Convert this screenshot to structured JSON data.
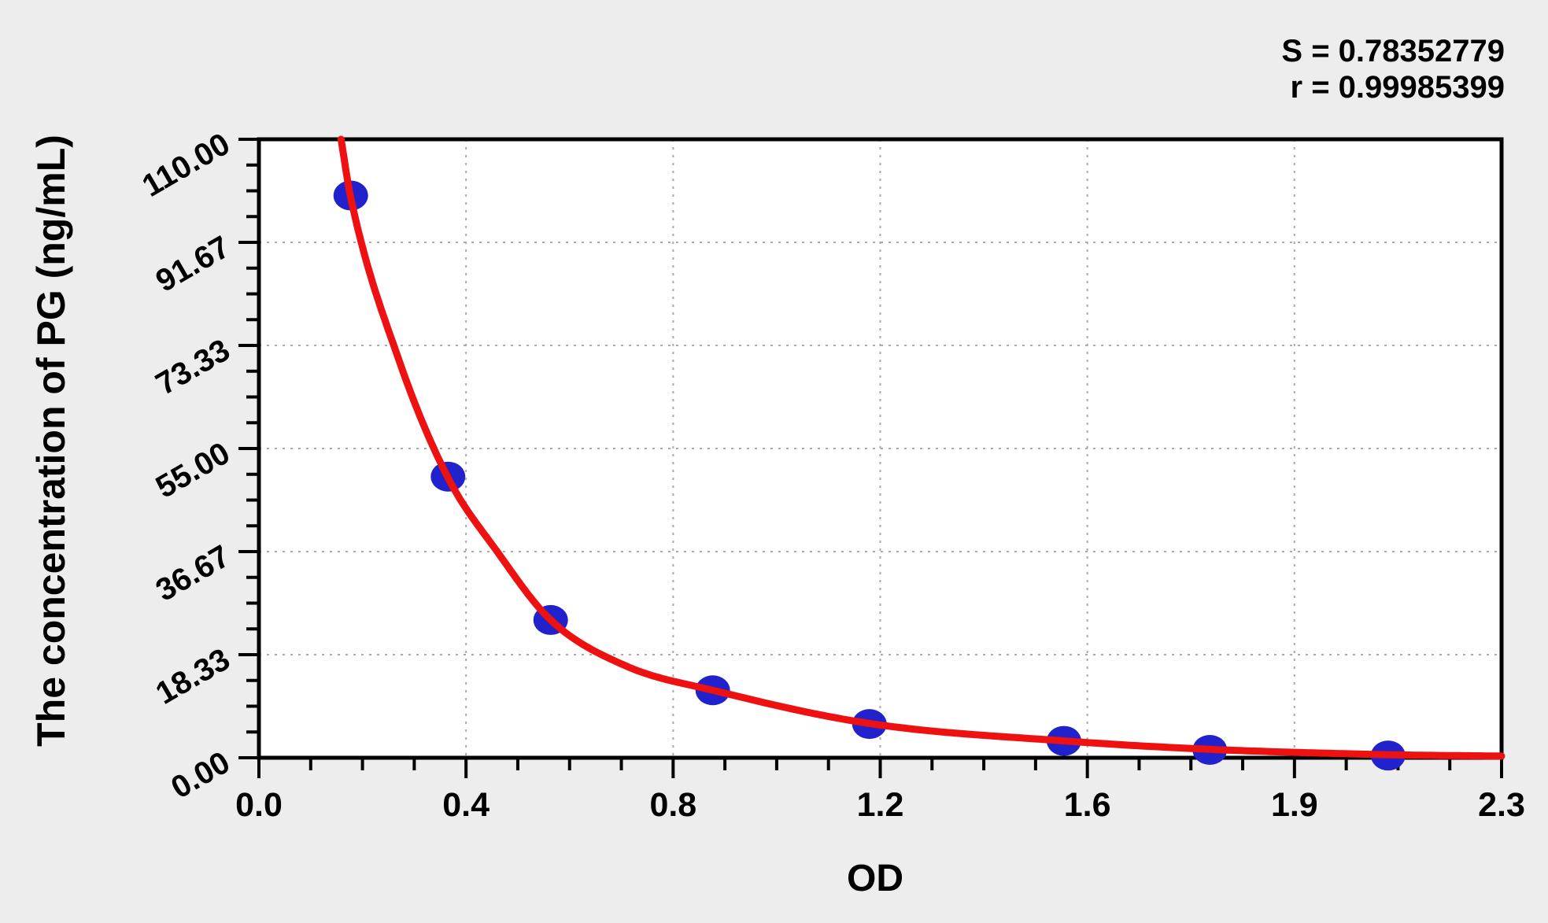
{
  "chart_data": {
    "type": "scatter",
    "title": "",
    "xlabel": "OD",
    "ylabel": "The concentration of PG (ng/mL)",
    "xlim": [
      0,
      2.3
    ],
    "ylim": [
      0,
      110
    ],
    "x_tick_labels": [
      "0.0",
      "0.4",
      "0.8",
      "1.2",
      "1.6",
      "1.9",
      "2.3"
    ],
    "y_tick_labels": [
      "0.00",
      "18.33",
      "36.67",
      "55.00",
      "73.33",
      "91.67",
      "110.00"
    ],
    "minor_ticks_between_majors": 3,
    "grid": "dashed gray lines at major ticks",
    "legend_position": "none",
    "points": [
      {
        "od": 0.17,
        "concentration": 100
      },
      {
        "od": 0.35,
        "concentration": 50
      },
      {
        "od": 0.54,
        "concentration": 24.5
      },
      {
        "od": 0.84,
        "concentration": 12
      },
      {
        "od": 1.13,
        "concentration": 6
      },
      {
        "od": 1.49,
        "concentration": 3
      },
      {
        "od": 1.76,
        "concentration": 1.4
      },
      {
        "od": 2.09,
        "concentration": 0.4
      }
    ],
    "fit_curve_anchors": [
      [
        0.152,
        110
      ],
      [
        0.17,
        99.6
      ],
      [
        0.26,
        70.5
      ],
      [
        0.35,
        49.8
      ],
      [
        0.44,
        36.8
      ],
      [
        0.54,
        24.5
      ],
      [
        0.68,
        16.3
      ],
      [
        0.84,
        12.0
      ],
      [
        1.13,
        6.1
      ],
      [
        1.49,
        3.0
      ],
      [
        1.76,
        1.5
      ],
      [
        2.09,
        0.55
      ],
      [
        2.3,
        0.3
      ]
    ],
    "stats": {
      "s_label": "S = 0.78352779",
      "r_label": "r = 0.99985399"
    },
    "colors": {
      "curve": "#ee1111",
      "marker": "#2222cc",
      "axis": "#000000",
      "grid": "#aaaaaa",
      "plot_bg": "#ffffff",
      "page_bg": "#ededed",
      "text": "#000000"
    }
  }
}
